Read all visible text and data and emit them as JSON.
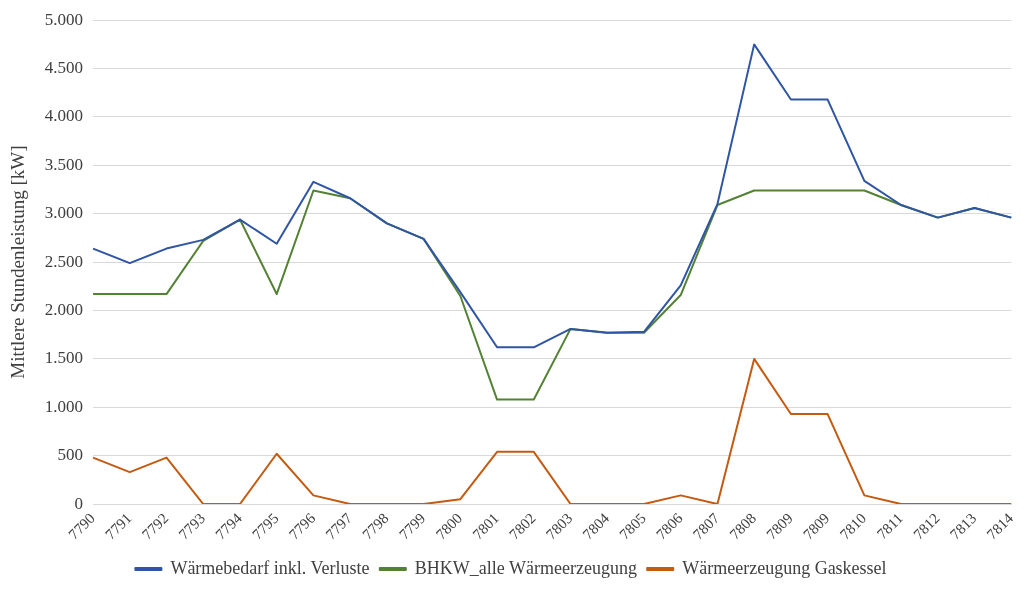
{
  "chart_data": {
    "type": "line",
    "ylabel": "Mittlere Stundenleistung [kW]",
    "categories": [
      "7790",
      "7791",
      "7792",
      "7793",
      "7794",
      "7795",
      "7796",
      "7797",
      "7798",
      "7799",
      "7800",
      "7801",
      "7802",
      "7803",
      "7804",
      "7805",
      "7806",
      "7807",
      "7808",
      "7809",
      "7809",
      "7810",
      "7811",
      "7812",
      "7813",
      "7814"
    ],
    "series": [
      {
        "name": "Wärmebedarf inkl. Verluste",
        "color": "#2f55a4",
        "values": [
          2640,
          2490,
          2640,
          2730,
          2940,
          2690,
          3330,
          3160,
          2900,
          2740,
          2190,
          1620,
          1620,
          1810,
          1770,
          1780,
          2260,
          3100,
          4750,
          4180,
          4180,
          3340,
          3090,
          2960,
          3060,
          2960
        ]
      },
      {
        "name": "BHKW_alle Wärmeerzeugung",
        "color": "#548235",
        "values": [
          2170,
          2170,
          2170,
          2720,
          2940,
          2170,
          3240,
          3160,
          2900,
          2740,
          2150,
          1080,
          1080,
          1810,
          1770,
          1770,
          2160,
          3090,
          3240,
          3240,
          3240,
          3240,
          3090,
          2960,
          3060,
          2960
        ]
      },
      {
        "name": "Wärmeerzeugung Gaskessel",
        "color": "#c55a11",
        "values": [
          480,
          330,
          480,
          0,
          0,
          520,
          90,
          0,
          0,
          0,
          50,
          540,
          540,
          0,
          0,
          0,
          90,
          0,
          1500,
          930,
          930,
          90,
          0,
          0,
          0,
          0
        ]
      }
    ],
    "ylim": [
      0,
      5000
    ],
    "yticks": [
      {
        "value": 0,
        "label": "0"
      },
      {
        "value": 500,
        "label": "500"
      },
      {
        "value": 1000,
        "label": "1.000"
      },
      {
        "value": 1500,
        "label": "1.500"
      },
      {
        "value": 2000,
        "label": "2.000"
      },
      {
        "value": 2500,
        "label": "2.500"
      },
      {
        "value": 3000,
        "label": "3.000"
      },
      {
        "value": 3500,
        "label": "3.500"
      },
      {
        "value": 4000,
        "label": "4.000"
      },
      {
        "value": 4500,
        "label": "4.500"
      },
      {
        "value": 5000,
        "label": "5.000"
      }
    ],
    "grid": "y",
    "legend": "bottom",
    "marker": "none",
    "line_style": "solid"
  }
}
